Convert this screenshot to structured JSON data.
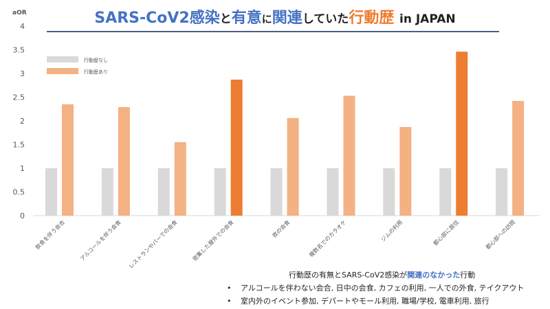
{
  "title": {
    "part1": "SARS-CoV2",
    "part2": "感染",
    "part3": "と",
    "part4": "有意",
    "part5": "に",
    "part6": "関連",
    "part7": "していた",
    "part8": "行動歴",
    "part9": "in JAPAN"
  },
  "note": {
    "prefix": "行動歴の有無とSARS-CoV2感染が",
    "highlight": "関連のなかった",
    "suffix": "行動"
  },
  "bullets": [
    "アルコールを伴わない会合, 日中の会食, カフェの利用, 一人での外食, テイクアウト",
    "室内外のイベント参加, デパートやモール利用, 職場/学校, 電車利用, 旅行"
  ],
  "chart_data": {
    "type": "bar",
    "ylabel": "aOR",
    "ylim": [
      0,
      4
    ],
    "yticks": [
      0,
      0.5,
      1,
      1.5,
      2,
      2.5,
      3,
      3.5,
      4
    ],
    "grid": false,
    "legend_position": "top-left",
    "categories": [
      "飲食を伴う会合",
      "アルコールを伴う会食",
      "レストランやバーでの会食",
      "密集した屋外での会食",
      "夜の会食",
      "複数名でのカラオケ",
      "ジムの利用",
      "都心部に居住",
      "都心部への訪問"
    ],
    "series": [
      {
        "name": "行動歴なし",
        "color": "#D9D9D9",
        "values": [
          1,
          1,
          1,
          1,
          1,
          1,
          1,
          1,
          1
        ]
      },
      {
        "name": "行動歴あり",
        "color": "#F4B183",
        "highlight_color": "#ED7D31",
        "values": [
          2.35,
          2.29,
          1.55,
          2.87,
          2.06,
          2.53,
          1.87,
          3.46,
          2.42
        ]
      }
    ],
    "highlighted_categories": [
      "密集した屋外での会食",
      "都心部に居住"
    ]
  }
}
